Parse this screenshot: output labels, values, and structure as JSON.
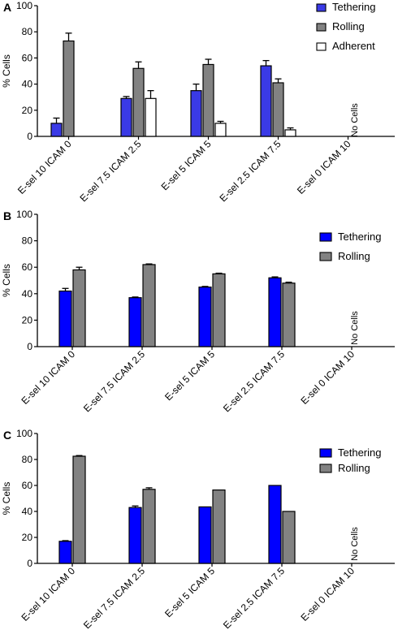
{
  "colors": {
    "tethering": "#3a3ae6",
    "rolling": "#828282",
    "adherent": "#ffffff",
    "stroke": "#000000"
  },
  "chart_data": [
    {
      "panel_label": "A",
      "type": "bar",
      "categories": [
        "E-sel 10 ICAM 0",
        "E-sel 7.5 ICAM 2.5",
        "E-sel 5 ICAM 5",
        "E-sel 2.5 ICAM 7.5",
        "E-sel 0 ICAM 10"
      ],
      "series": [
        {
          "name": "Tethering",
          "color": "#3a3ae6",
          "values": [
            10,
            29,
            35,
            54,
            null
          ],
          "errors": [
            4,
            1.5,
            5,
            4,
            null
          ]
        },
        {
          "name": "Rolling",
          "color": "#828282",
          "values": [
            73,
            52,
            55,
            41,
            null
          ],
          "errors": [
            6,
            5,
            4,
            3,
            null
          ]
        },
        {
          "name": "Adherent",
          "color": "#ffffff",
          "values": [
            null,
            29,
            10,
            5,
            null
          ],
          "errors": [
            null,
            6,
            1.5,
            1.5,
            null
          ]
        }
      ],
      "annotation": "No Cells",
      "ylabel": "% Cells",
      "ylim": [
        0,
        100
      ],
      "yticks": [
        0,
        20,
        40,
        60,
        80,
        100
      ],
      "legend_position": "top-right"
    },
    {
      "panel_label": "B",
      "type": "bar",
      "categories": [
        "E-sel 10 ICAM 0",
        "E-sel 7.5 ICAM 2.5",
        "E-sel 5 ICAM 5",
        "E-sel 2.5 ICAM 7.5",
        "E-sel 0 ICAM 10"
      ],
      "series": [
        {
          "name": "Tethering",
          "color": "#0000ff",
          "values": [
            42,
            37,
            45,
            52,
            null
          ],
          "errors": [
            2,
            0.5,
            0.5,
            0.7,
            null
          ]
        },
        {
          "name": "Rolling",
          "color": "#828282",
          "values": [
            58,
            62,
            55,
            48,
            null
          ],
          "errors": [
            2,
            0.5,
            0.5,
            0.7,
            null
          ]
        }
      ],
      "annotation": "No Cells",
      "ylabel": "% Cells",
      "ylim": [
        0,
        100
      ],
      "yticks": [
        0,
        20,
        40,
        60,
        80,
        100
      ],
      "legend_position": "top-right"
    },
    {
      "panel_label": "C",
      "type": "bar",
      "categories": [
        "E-sel 10 ICAM 0",
        "E-sel 7.5 ICAM 2.5",
        "E-sel 5 ICAM 5",
        "E-sel 2.5 ICAM 7.5",
        "E-sel 0 ICAM 10"
      ],
      "series": [
        {
          "name": "Tethering",
          "color": "#0000ff",
          "values": [
            17,
            43,
            43.5,
            60,
            null
          ],
          "errors": [
            0.5,
            1.2,
            0,
            0,
            null
          ]
        },
        {
          "name": "Rolling",
          "color": "#828282",
          "values": [
            82.5,
            57,
            56.5,
            40,
            null
          ],
          "errors": [
            0.5,
            1.2,
            0,
            0,
            null
          ]
        }
      ],
      "annotation": "No Cells",
      "ylabel": "% Cells",
      "ylim": [
        0,
        100
      ],
      "yticks": [
        0,
        20,
        40,
        60,
        80,
        100
      ],
      "legend_position": "top-right"
    }
  ]
}
